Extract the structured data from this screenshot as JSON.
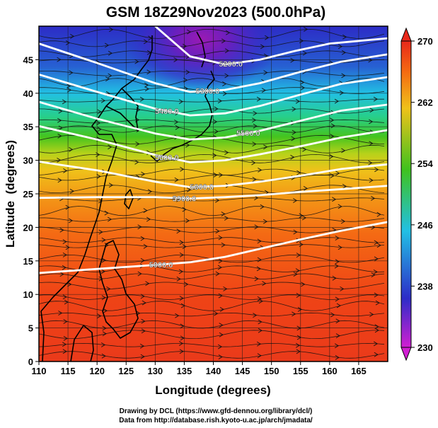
{
  "chart_data": {
    "type": "heatmap",
    "title": "GSM 18Z29Nov2023 (500.0hPa)",
    "xlabel": "Longitude (degrees)",
    "ylabel": "Latitude  (degrees)",
    "xlim": [
      110,
      170
    ],
    "ylim": [
      0,
      50
    ],
    "xticks": [
      "110",
      "115",
      "120",
      "125",
      "130",
      "135",
      "140",
      "145",
      "150",
      "155",
      "160",
      "165"
    ],
    "yticks": [
      "0",
      "5",
      "10",
      "15",
      "20",
      "25",
      "30",
      "35",
      "40",
      "45"
    ],
    "colorbar": {
      "min": 230,
      "max": 270,
      "ticks": [
        "230",
        "238",
        "246",
        "254",
        "262",
        "270"
      ],
      "colors": [
        "#d11fd2",
        "#2d2cc8",
        "#22c0e4",
        "#3fc21e",
        "#efc21a",
        "#f56a12",
        "#e8281a"
      ]
    },
    "temperature_by_latitude": {
      "lat": [
        0,
        10,
        15,
        20,
        25,
        28,
        30,
        33,
        36,
        38,
        40,
        42,
        45,
        48,
        50
      ],
      "temp": [
        266,
        265.5,
        265,
        263.5,
        262,
        260.5,
        258,
        255,
        251,
        248,
        245,
        243,
        241,
        240,
        240
      ]
    },
    "cold_core": {
      "lon": 138,
      "lat": 46,
      "min_temp": 232
    },
    "height_contours": [
      {
        "label": "5200.0",
        "lon": [
          130,
          136,
          142,
          148,
          154,
          160,
          170
        ],
        "lat": [
          50,
          45.5,
          44.3,
          45,
          46.3,
          47.4,
          48.2
        ]
      },
      {
        "label": "5300.0",
        "lon": [
          110,
          120,
          130,
          136,
          142,
          148,
          155,
          162,
          170
        ],
        "lat": [
          47.4,
          44.5,
          41.5,
          40.2,
          40.5,
          41.5,
          43.2,
          44.7,
          45.8
        ]
      },
      {
        "label": "5400.0",
        "lon": [
          110,
          120,
          130,
          136,
          142,
          148,
          155,
          162,
          170
        ],
        "lat": [
          42.8,
          40.2,
          37.7,
          36.7,
          37,
          38.1,
          39.8,
          41.4,
          42.4
        ]
      },
      {
        "label": "5500.0",
        "lon": [
          110,
          120,
          130,
          136,
          142,
          148,
          155,
          162,
          170
        ],
        "lat": [
          38.7,
          36.2,
          34,
          33.1,
          33.4,
          34.4,
          35.9,
          37.4,
          38.3
        ]
      },
      {
        "label": "5600.0",
        "lon": [
          110,
          120,
          130,
          136,
          142,
          148,
          155,
          162,
          170
        ],
        "lat": [
          35.1,
          33.1,
          30.8,
          29.7,
          30,
          30.9,
          32.1,
          33.4,
          34.5
        ]
      },
      {
        "label": "5800.0",
        "lon": [
          110,
          120,
          130,
          136,
          142,
          148,
          155,
          162,
          170
        ],
        "lat": [
          29.8,
          28.5,
          26.8,
          26,
          26.2,
          26.8,
          27.7,
          28.7,
          29.4
        ]
      },
      {
        "label": "5900.0",
        "lon": [
          110,
          120,
          130,
          136,
          142,
          148,
          155,
          162,
          170
        ],
        "lat": [
          24.4,
          24.5,
          24.5,
          24.3,
          24.5,
          24.8,
          25.3,
          25.7,
          26.2
        ]
      },
      {
        "label": "5900.0",
        "lon": [
          110,
          120,
          130,
          136,
          142,
          148,
          155,
          162,
          170
        ],
        "lat": [
          13.2,
          13.8,
          14.4,
          14.8,
          15.6,
          16.8,
          18.2,
          19.5,
          20.8
        ]
      }
    ],
    "credits": [
      "Drawing by DCL (https://www.gfd-dennou.org/library/dcl/)",
      "Data from http://database.rish.kyoto-u.ac.jp/arch/jmadata/"
    ]
  }
}
